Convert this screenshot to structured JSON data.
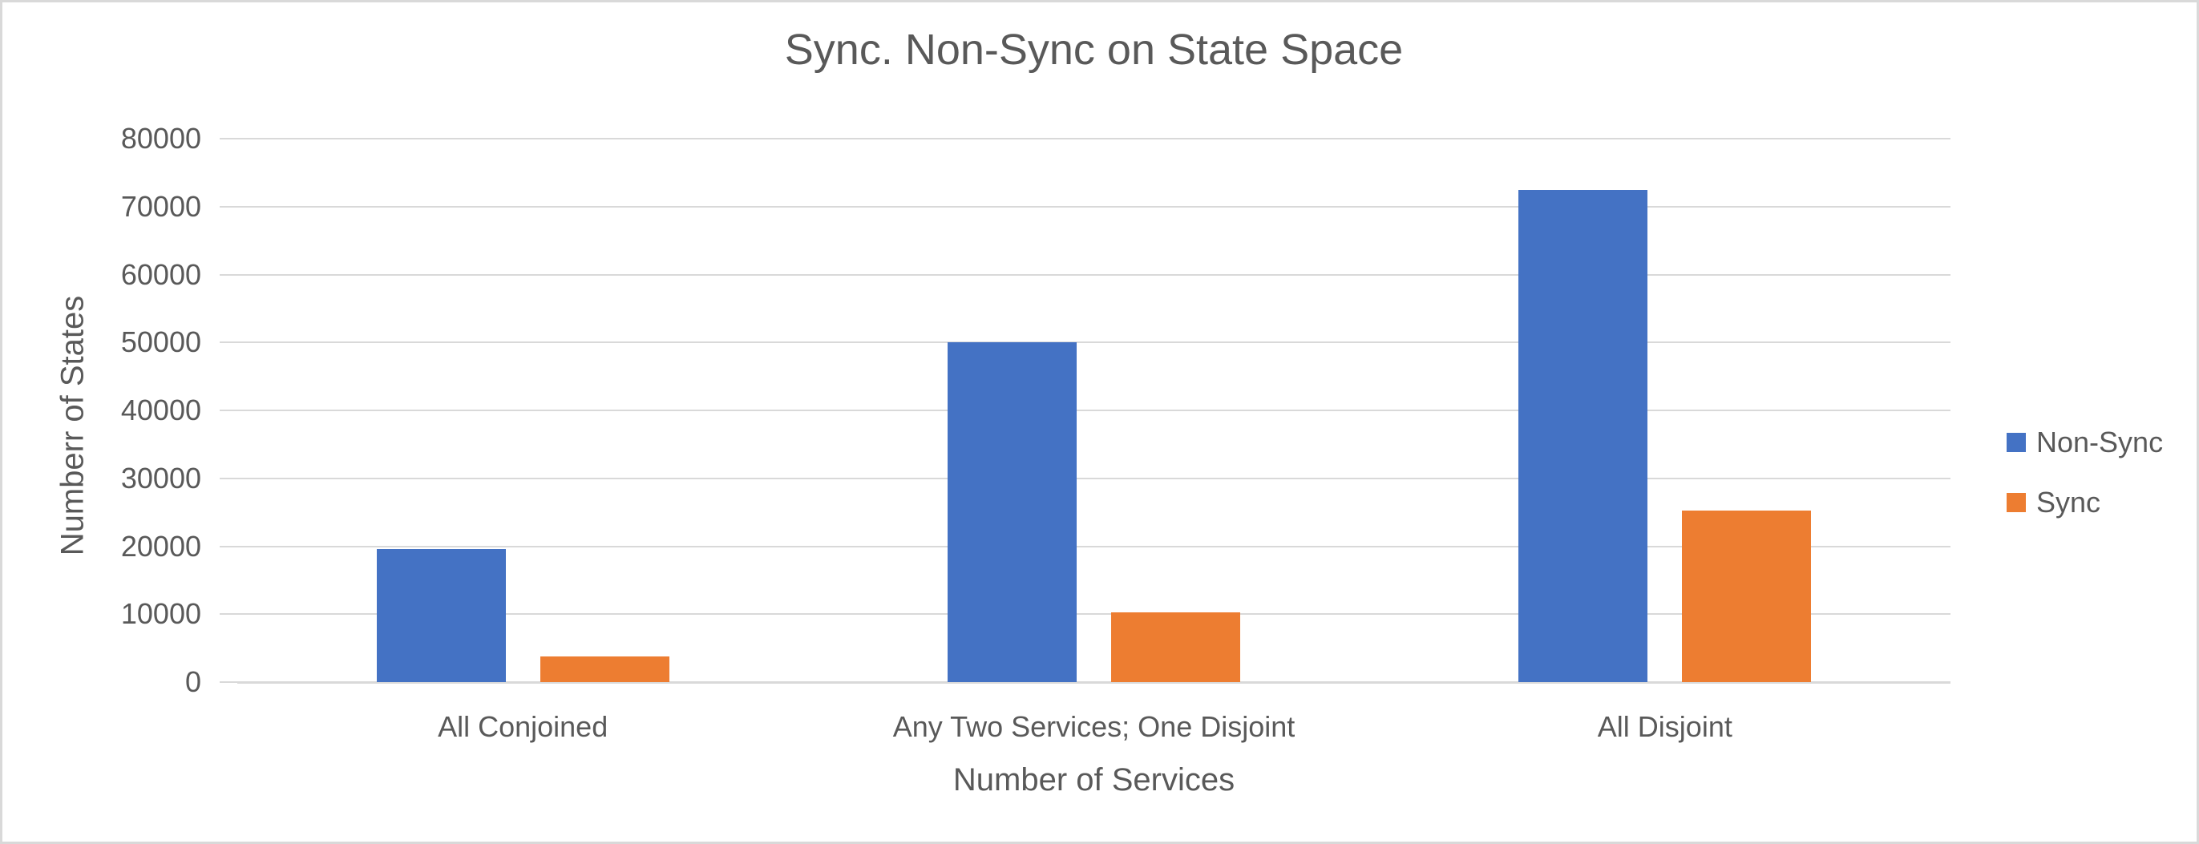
{
  "chart_data": {
    "type": "bar",
    "title": "Sync. Non-Sync on State Space",
    "xlabel": "Number of Services",
    "ylabel": "Numberr of States",
    "categories": [
      "All Conjoined",
      "Any Two Services; One Disjoint",
      "All Disjoint"
    ],
    "series": [
      {
        "name": "Non-Sync",
        "color": "#4472C4",
        "values": [
          19600,
          50000,
          72400
        ]
      },
      {
        "name": "Sync",
        "color": "#ED7D31",
        "values": [
          3800,
          10300,
          25300
        ]
      }
    ],
    "ylim": [
      0,
      80000
    ],
    "ytick_step": 10000,
    "ytick_labels": [
      "0",
      "10000",
      "20000",
      "30000",
      "40000",
      "50000",
      "60000",
      "70000",
      "80000"
    ],
    "grid": true,
    "legend_position": "right"
  },
  "colors": {
    "bar_blue": "#4472C4",
    "bar_orange": "#ED7D31",
    "grid": "#D9D9D9",
    "axis": "#D9D9D9",
    "text": "#595959",
    "background": "#FFFFFF",
    "frame_border": "#D9D9D9"
  }
}
